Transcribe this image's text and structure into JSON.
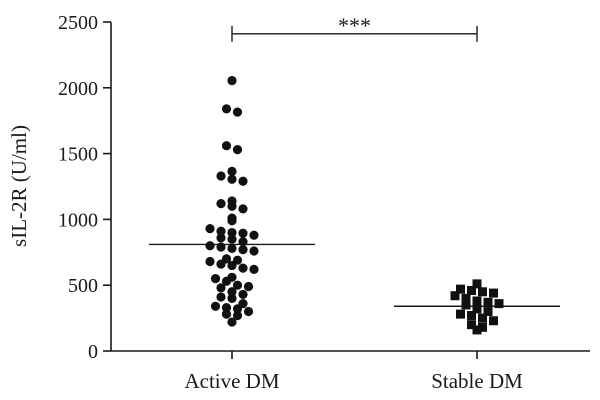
{
  "chart_data": {
    "type": "scatter",
    "ylabel": "sIL-2R (U/ml)",
    "xlabel": "",
    "ylim": [
      0,
      2500
    ],
    "yticks": [
      0,
      500,
      1000,
      1500,
      2000,
      2500
    ],
    "yticklabels": [
      "0",
      "500",
      "1000",
      "1500",
      "2000",
      "2500"
    ],
    "categories": [
      "Active DM",
      "Stable DM"
    ],
    "series": [
      {
        "category": "Active DM",
        "marker": "circle",
        "mean": 810,
        "values": [
          2055,
          1840,
          1815,
          1560,
          1530,
          1365,
          1330,
          1305,
          1290,
          1140,
          1120,
          1100,
          1080,
          1010,
          990,
          930,
          910,
          900,
          895,
          880,
          860,
          850,
          830,
          800,
          790,
          780,
          770,
          760,
          700,
          690,
          680,
          660,
          650,
          630,
          620,
          560,
          550,
          530,
          500,
          490,
          480,
          450,
          430,
          410,
          400,
          360,
          340,
          330,
          320,
          300,
          280,
          270,
          220
        ]
      },
      {
        "category": "Stable DM",
        "marker": "square",
        "mean": 340,
        "values": [
          510,
          470,
          460,
          450,
          440,
          420,
          400,
          380,
          370,
          360,
          350,
          320,
          300,
          280,
          270,
          250,
          230,
          200,
          180,
          160
        ]
      }
    ],
    "annotations": [
      {
        "type": "significance-bracket",
        "text": "***",
        "from": "Active DM",
        "to": "Stable DM",
        "y": 2410
      }
    ],
    "colors": {
      "points": "#111111",
      "axis": "#1a1a1a"
    }
  }
}
